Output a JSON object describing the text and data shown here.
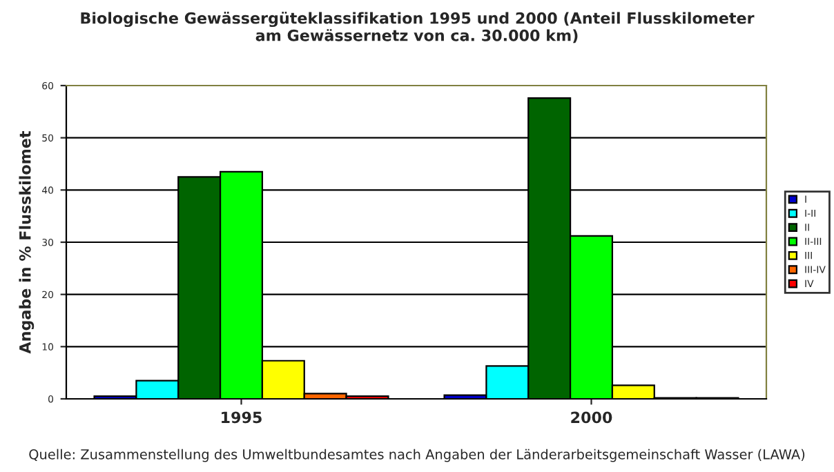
{
  "chart_data": {
    "type": "bar",
    "title": "Biologische Gewässergüteklassifikation 1995 und 2000 (Anteil Flusskilometer\nam Gewässernetz von ca. 30.000 km)",
    "ylabel": "Angabe in % Flusskilomet",
    "categories": [
      "1995",
      "2000"
    ],
    "series": [
      {
        "name": "I",
        "color": "#0000cc",
        "values": [
          0.5,
          0.7
        ]
      },
      {
        "name": "I-II",
        "color": "#00ffff",
        "values": [
          3.5,
          6.3
        ]
      },
      {
        "name": "II",
        "color": "#006400",
        "values": [
          42.5,
          57.6
        ]
      },
      {
        "name": "II-III",
        "color": "#00ff00",
        "values": [
          43.5,
          31.2
        ]
      },
      {
        "name": "III",
        "color": "#ffff00",
        "values": [
          7.3,
          2.6
        ]
      },
      {
        "name": "III-IV",
        "color": "#ff6600",
        "values": [
          1.0,
          0.2
        ]
      },
      {
        "name": "IV",
        "color": "#ff0000",
        "values": [
          0.5,
          0.2
        ]
      }
    ],
    "ylim": [
      0,
      60
    ],
    "yticks": [
      0,
      10,
      20,
      30,
      40,
      50,
      60
    ],
    "grid": "y",
    "legend": "right",
    "annotations": [
      "Quelle: Zusammenstellung des Umweltbundesamtes nach Angaben der Länderarbeitsgemeinschaft Wasser (LAWA)"
    ]
  }
}
